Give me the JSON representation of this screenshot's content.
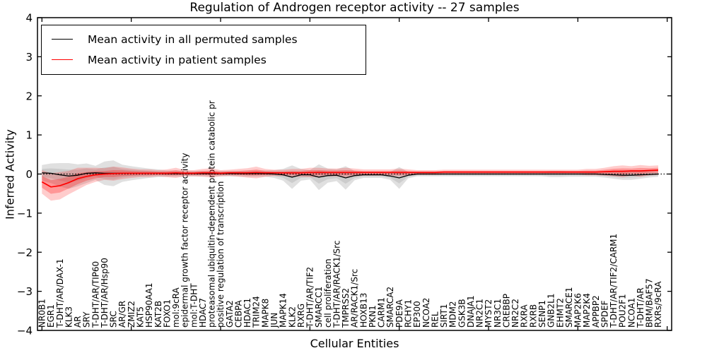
{
  "chart_data": {
    "type": "line",
    "title": "Regulation of Androgen receptor activity -- 27 samples",
    "xlabel": "Cellular Entities",
    "ylabel": "Inferred Activity",
    "ylim": [
      -4,
      4
    ],
    "yticks": [
      -4,
      -3,
      -2,
      -1,
      0,
      1,
      2,
      3,
      4
    ],
    "xticks": [
      0,
      10,
      20,
      30,
      40,
      50,
      60,
      70
    ],
    "grid": false,
    "zero_line": true,
    "legend": {
      "position": "upper left",
      "entries": [
        {
          "label": "Mean activity in all permuted samples",
          "color": "#000000"
        },
        {
          "label": "Mean activity in patient samples",
          "color": "#ff0000"
        }
      ]
    },
    "categories": [
      "NR0B1",
      "EGR1",
      "T-DHT/AR/DAX-1",
      "KLK3",
      "AR",
      "SRY",
      "T-DHT/AR/TIP60",
      "T-DHT/AR/Hsp90",
      "SRC",
      "AR/GR",
      "ZMIZ2",
      "KAT5",
      "HSP90AA1",
      "KAT2B",
      "FOXO1",
      "mol:9cRA",
      "epidermal growth factor receptor activity",
      "mol:T-DHT",
      "HDAC7",
      "proteasomal ubiquitin-dependent protein catabolic pr",
      "positive regulation of transcription",
      "GATA2",
      "CEBPA",
      "HDAC1",
      "TRIM24",
      "MAPK8",
      "JUN",
      "MAPK14",
      "KLK2",
      "RXRG",
      "T-DHT/AR/TIF2",
      "SMARCC1",
      "cell proliferation",
      "T-DHT/AR/RACK1/Src",
      "TMPRSS2",
      "AR/RACK1/Src",
      "HOXB13",
      "PKN1",
      "CARM1",
      "SMARCA2",
      "PDE9A",
      "RCHY1",
      "EP300",
      "NCOA2",
      "REL",
      "SIRT1",
      "MDM2",
      "GSK3B",
      "DNAJA1",
      "NR2C1",
      "MYST2",
      "NR3C1",
      "CREBBP",
      "NR2C2",
      "RXRA",
      "RXRB",
      "SENP1",
      "GNB2L1",
      "EHMT2",
      "SMARCE1",
      "MAP2K6",
      "MAP2K4",
      "APPBP2",
      "SPDEF",
      "T-DHT/AR/TIF2/CARM1",
      "POU2F1",
      "NCOA1",
      "T-DHT/AR",
      "BRM/BAF57",
      "RXRs/9cRA"
    ],
    "series": [
      {
        "name": "Mean activity in all permuted samples",
        "color": "#000000",
        "band_color": "#999999",
        "values": [
          0.03,
          0.02,
          -0.02,
          -0.05,
          -0.03,
          0.02,
          0.03,
          0.02,
          0.02,
          0.02,
          0.02,
          0.02,
          0.02,
          0.02,
          0.01,
          0.01,
          0.01,
          0.01,
          0.01,
          0.01,
          0.01,
          0.01,
          0.01,
          0.01,
          0.01,
          0.01,
          0.0,
          -0.02,
          -0.08,
          -0.02,
          -0.02,
          -0.08,
          -0.04,
          -0.03,
          -0.1,
          -0.04,
          -0.02,
          -0.02,
          -0.02,
          -0.05,
          -0.1,
          -0.03,
          0.0,
          0.0,
          0.0,
          0.0,
          0.0,
          0.0,
          0.0,
          0.0,
          0.0,
          0.0,
          0.0,
          0.0,
          0.0,
          0.0,
          0.0,
          0.0,
          0.0,
          0.0,
          0.0,
          0.0,
          0.0,
          -0.01,
          -0.02,
          -0.03,
          -0.03,
          -0.02,
          -0.01,
          0.0
        ],
        "std": [
          0.2,
          0.25,
          0.3,
          0.33,
          0.28,
          0.25,
          0.18,
          0.3,
          0.33,
          0.22,
          0.18,
          0.15,
          0.12,
          0.1,
          0.08,
          0.08,
          0.07,
          0.07,
          0.07,
          0.07,
          0.07,
          0.07,
          0.07,
          0.08,
          0.08,
          0.08,
          0.1,
          0.15,
          0.3,
          0.15,
          0.12,
          0.33,
          0.18,
          0.15,
          0.3,
          0.12,
          0.08,
          0.08,
          0.08,
          0.1,
          0.28,
          0.08,
          0.06,
          0.06,
          0.06,
          0.06,
          0.06,
          0.06,
          0.06,
          0.06,
          0.06,
          0.06,
          0.06,
          0.06,
          0.06,
          0.06,
          0.06,
          0.08,
          0.08,
          0.07,
          0.07,
          0.07,
          0.07,
          0.08,
          0.1,
          0.12,
          0.12,
          0.1,
          0.08,
          0.07
        ]
      },
      {
        "name": "Mean activity in patient samples",
        "color": "#ff0000",
        "band_color": "#ff0000",
        "values": [
          -0.2,
          -0.33,
          -0.3,
          -0.22,
          -0.12,
          -0.06,
          -0.02,
          0.0,
          0.01,
          0.02,
          0.02,
          0.02,
          0.02,
          0.02,
          0.02,
          0.03,
          0.02,
          0.02,
          0.03,
          0.03,
          0.02,
          0.03,
          0.03,
          0.03,
          0.04,
          0.03,
          0.03,
          0.03,
          0.03,
          0.03,
          0.04,
          0.04,
          0.04,
          0.04,
          0.04,
          0.04,
          0.04,
          0.04,
          0.04,
          0.04,
          0.04,
          0.04,
          0.04,
          0.04,
          0.04,
          0.05,
          0.05,
          0.05,
          0.05,
          0.05,
          0.05,
          0.05,
          0.05,
          0.05,
          0.05,
          0.05,
          0.05,
          0.05,
          0.05,
          0.05,
          0.05,
          0.05,
          0.05,
          0.06,
          0.07,
          0.07,
          0.08,
          0.08,
          0.09,
          0.1
        ],
        "std": [
          0.3,
          0.35,
          0.35,
          0.3,
          0.28,
          0.22,
          0.18,
          0.15,
          0.18,
          0.15,
          0.12,
          0.1,
          0.1,
          0.08,
          0.1,
          0.13,
          0.08,
          0.08,
          0.1,
          0.12,
          0.08,
          0.08,
          0.1,
          0.12,
          0.15,
          0.1,
          0.08,
          0.08,
          0.1,
          0.1,
          0.12,
          0.12,
          0.1,
          0.1,
          0.12,
          0.1,
          0.08,
          0.08,
          0.08,
          0.08,
          0.1,
          0.08,
          0.06,
          0.06,
          0.06,
          0.06,
          0.06,
          0.06,
          0.06,
          0.06,
          0.06,
          0.06,
          0.06,
          0.06,
          0.06,
          0.06,
          0.06,
          0.06,
          0.06,
          0.06,
          0.06,
          0.08,
          0.08,
          0.1,
          0.13,
          0.15,
          0.12,
          0.15,
          0.12,
          0.12
        ]
      }
    ]
  }
}
